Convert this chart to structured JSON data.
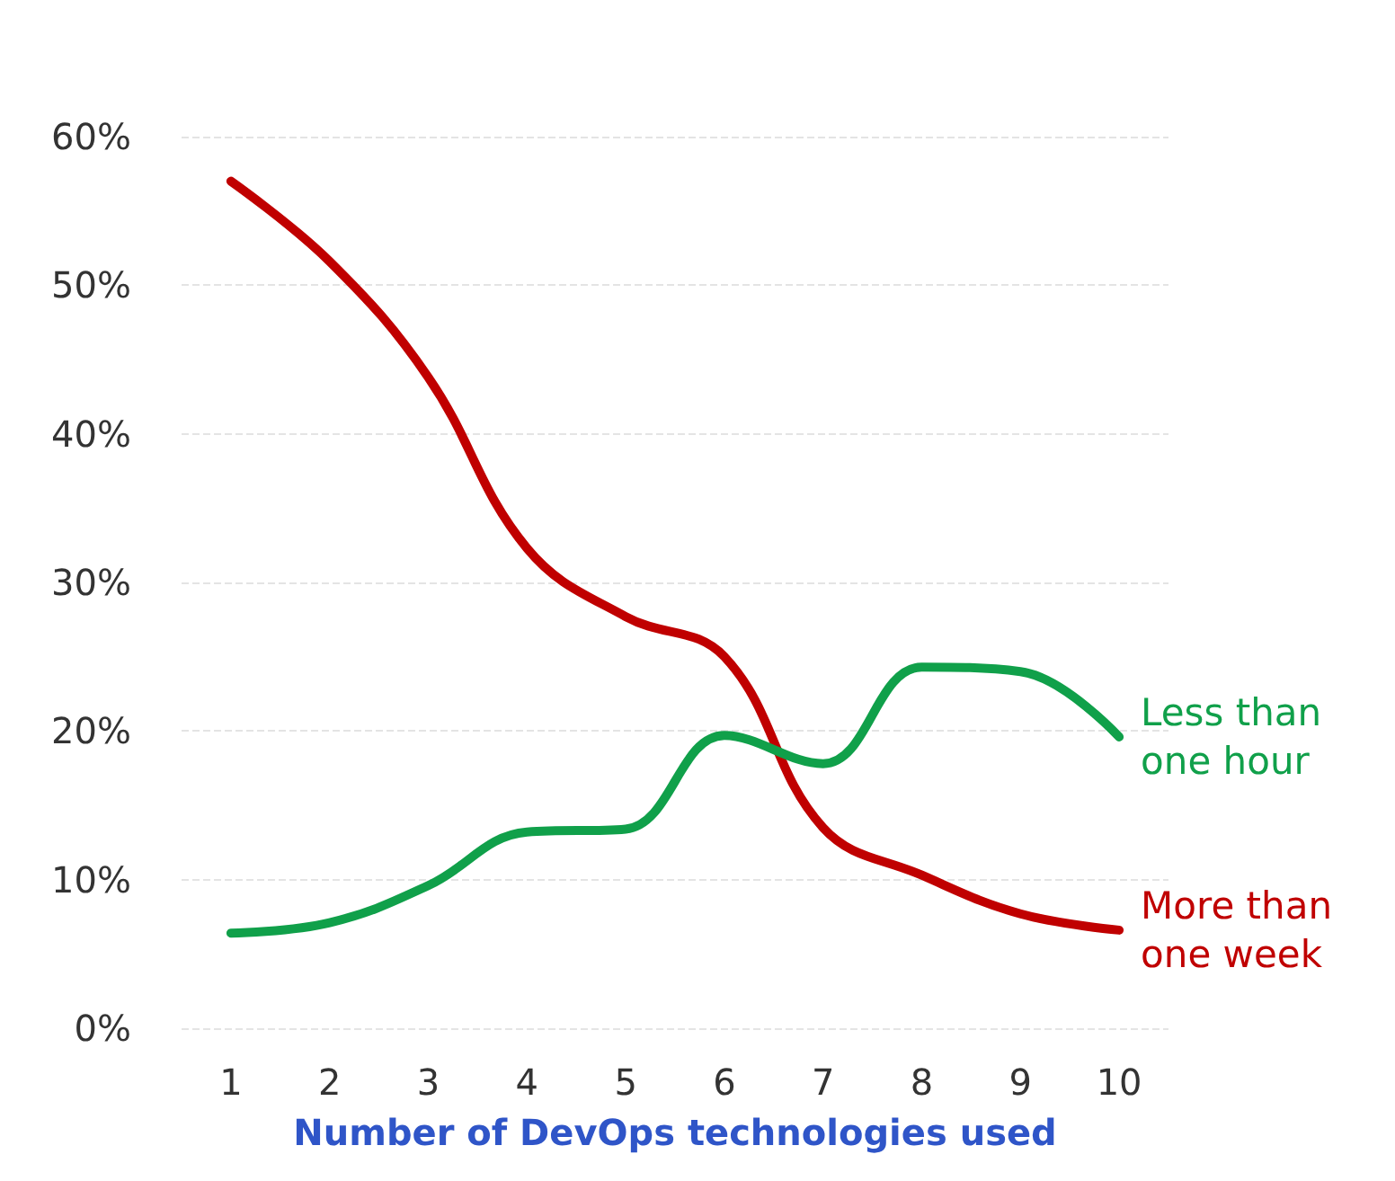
{
  "chart_data": {
    "type": "line",
    "xlabel": "Number of DevOps technologies used",
    "categories": [
      "1",
      "2",
      "3",
      "4",
      "5",
      "6",
      "7",
      "8",
      "9",
      "10"
    ],
    "series": [
      {
        "name": "More than one week",
        "color": "#c00000",
        "values": [
          57,
          51.6,
          43.8,
          32.3,
          27.7,
          25,
          13.5,
          10.3,
          7.7,
          6.6
        ]
      },
      {
        "name": "Less than one hour",
        "color": "#10a04a",
        "values": [
          6.4,
          7.1,
          9.6,
          13.2,
          13.4,
          19.7,
          17.8,
          24.3,
          24,
          19.6
        ]
      }
    ],
    "ylim": [
      0,
      60
    ],
    "yticks": [
      {
        "value": 0,
        "label": "0%"
      },
      {
        "value": 10,
        "label": "10%"
      },
      {
        "value": 20,
        "label": "20%"
      },
      {
        "value": 30,
        "label": "30%"
      },
      {
        "value": 40,
        "label": "40%"
      },
      {
        "value": 50,
        "label": "50%"
      },
      {
        "value": 60,
        "label": "60%"
      }
    ],
    "grid": "y",
    "marker": "none",
    "line_style": "solid"
  }
}
